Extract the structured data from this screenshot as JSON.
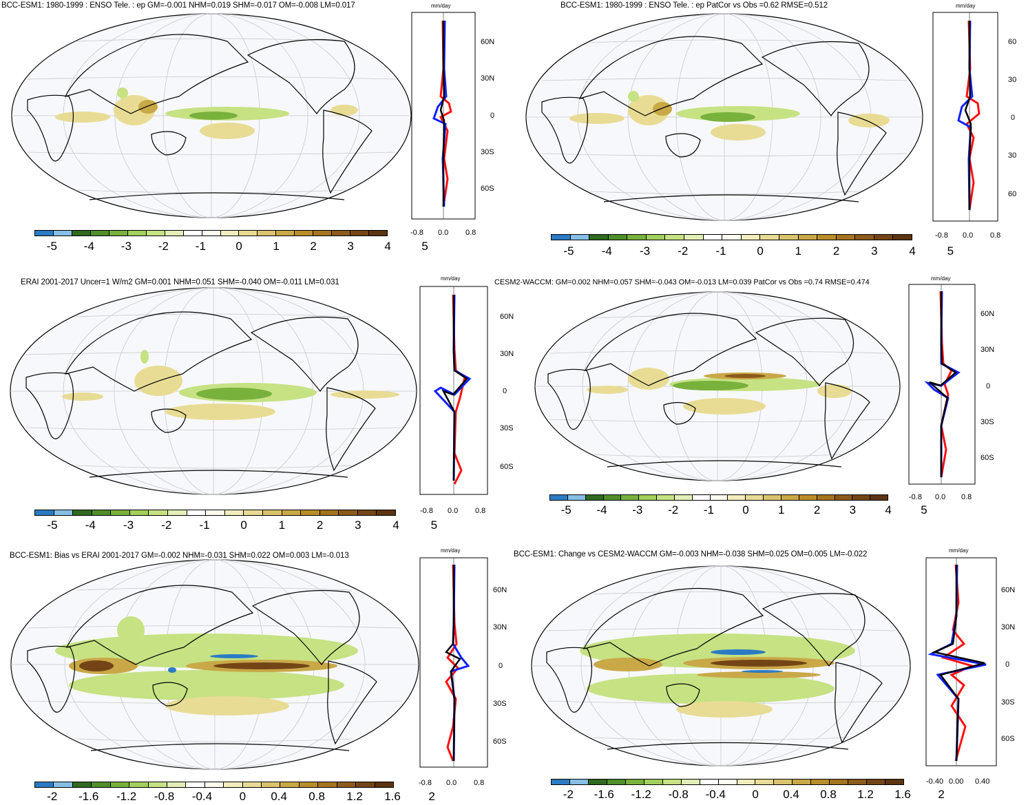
{
  "panels": [
    {
      "id": "p1",
      "title": "BCC-ESM1: 1980-1999 : ENSO Tele. : ep GM=-0.001 NHM=0.019 SHM=-0.017 OM=-0.008 LM=0.017",
      "unit": "mm/day",
      "colorbar_labels": [
        "-5",
        "-4",
        "-3",
        "-2",
        "-1",
        "0",
        "1",
        "2",
        "3",
        "4",
        "5"
      ],
      "zonal_xticks": [
        "-0.8",
        "0.0",
        "0.8"
      ],
      "zonal_yticks": [
        "60N",
        "30N",
        "0",
        "30S",
        "60S"
      ]
    },
    {
      "id": "p2",
      "title": "BCC-ESM1: 1980-1999 : ENSO Tele. : ep PatCor vs Obs =0.62 RMSE=0.512",
      "unit": "mm/day",
      "colorbar_labels": [
        "-5",
        "-4",
        "-3",
        "-2",
        "-1",
        "0",
        "1",
        "2",
        "3",
        "4",
        "5"
      ],
      "zonal_xticks": [
        "-0.8",
        "0.0",
        "0.8"
      ],
      "zonal_yticks": [
        "60",
        "30",
        "0",
        "30",
        "60"
      ]
    },
    {
      "id": "p3",
      "title": "ERAI 2001-2017 Uncer=1 W/m2 GM=0.001 NHM=0.051 SHM=-0.040 OM=-0.011 LM=0.031",
      "unit": "mm/day",
      "colorbar_labels": [
        "-5",
        "-4",
        "-3",
        "-2",
        "-1",
        "0",
        "1",
        "2",
        "3",
        "4",
        "5"
      ],
      "zonal_xticks": [
        "-0.8",
        "0.0",
        "0.8"
      ],
      "zonal_yticks": [
        "60N",
        "30N",
        "0",
        "30S",
        "60S"
      ]
    },
    {
      "id": "p4",
      "title": "CESM2-WACCM: GM=0.002 NHM=0.057 SHM=-0.043 OM=-0.013 LM=0.039 PatCor vs Obs =0.74 RMSE=0.474",
      "unit": "mm/day",
      "colorbar_labels": [
        "-5",
        "-4",
        "-3",
        "-2",
        "-1",
        "0",
        "1",
        "2",
        "3",
        "4",
        "5"
      ],
      "zonal_xticks": [
        "-0.8",
        "0.0",
        "0.8"
      ],
      "zonal_yticks": [
        "60N",
        "30N",
        "0",
        "30S",
        "60S"
      ]
    },
    {
      "id": "p5",
      "title": "BCC-ESM1: Bias vs ERAI 2001-2017 GM=-0.002 NHM=-0.031 SHM=0.022 OM=0.003 LM=-0.013",
      "unit": "mm/day",
      "colorbar_labels": [
        "-2",
        "-1.6",
        "-1.2",
        "-0.8",
        "-0.4",
        "0",
        "0.4",
        "0.8",
        "1.2",
        "1.6",
        "2"
      ],
      "zonal_xticks": [
        "-0.8",
        "0.0",
        "0.8"
      ],
      "zonal_yticks": [
        "60N",
        "30N",
        "0",
        "30S",
        "60S"
      ]
    },
    {
      "id": "p6",
      "title": "BCC-ESM1: Change vs CESM2-WACCM GM=-0.003 NHM=-0.038 SHM=0.025 OM=0.005 LM=-0.022",
      "unit": "mm/day",
      "colorbar_labels": [
        "-2",
        "-1.6",
        "-1.2",
        "-0.8",
        "-0.4",
        "0",
        "0.4",
        "0.8",
        "1.2",
        "1.6",
        "2"
      ],
      "zonal_xticks": [
        "-0.40",
        "0.00",
        "0.40"
      ],
      "zonal_yticks": [
        "60N",
        "30N",
        "0",
        "30S",
        "60S"
      ]
    }
  ],
  "palette": [
    "#2b7bc4",
    "#86bfe6",
    "#2f6a1f",
    "#4f8f2a",
    "#79b13d",
    "#a3cf5c",
    "#c6e283",
    "#e2efb8",
    "#ffffff",
    "#fbfbf0",
    "#f2edbe",
    "#e8dc95",
    "#d9c46d",
    "#c9a847",
    "#b98d2a",
    "#a5741f",
    "#8c5a1b",
    "#734516",
    "#5c3410"
  ],
  "colors": {
    "obs_line": "#ff1010",
    "model_line": "#1020ff",
    "mean_line": "#000000",
    "ocean": "#f7f8fc",
    "graticule": "#c8c8cc"
  }
}
